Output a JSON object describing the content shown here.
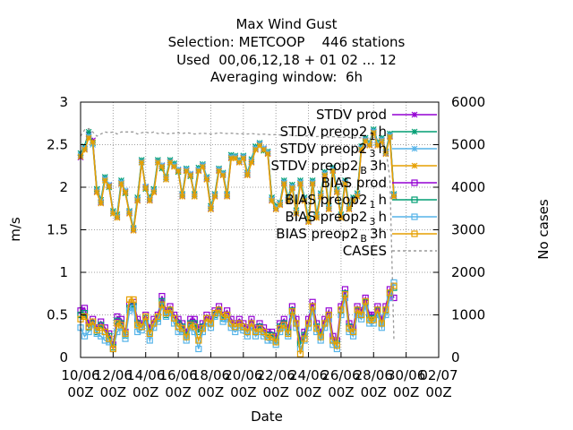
{
  "chart_data": {
    "type": "line",
    "title_lines": [
      "Max Wind Gust",
      "Selection: METCOOP    446 stations",
      "Used  00,06,12,18 + 01 02 ... 12",
      "Averaging window:  6h"
    ],
    "xlabel": "Date",
    "ylabel": "m/s",
    "y2label": "No cases",
    "ylim": [
      0,
      3
    ],
    "y2lim": [
      0,
      6000
    ],
    "yticks": [
      "0",
      "0.5",
      "1",
      "1.5",
      "2",
      "2.5",
      "3"
    ],
    "y2ticks": [
      "0",
      "1000",
      "2000",
      "3000",
      "4000",
      "5000",
      "6000"
    ],
    "xticks": [
      {
        "day": "10/06",
        "hour": "00Z"
      },
      {
        "day": "12/06",
        "hour": "00Z"
      },
      {
        "day": "14/06",
        "hour": "00Z"
      },
      {
        "day": "16/06",
        "hour": "00Z"
      },
      {
        "day": "18/06",
        "hour": "00Z"
      },
      {
        "day": "20/06",
        "hour": "00Z"
      },
      {
        "day": "22/06",
        "hour": "00Z"
      },
      {
        "day": "24/06",
        "hour": "00Z"
      },
      {
        "day": "26/06",
        "hour": "00Z"
      },
      {
        "day": "28/06",
        "hour": "00Z"
      },
      {
        "day": "30/06",
        "hour": "00Z"
      },
      {
        "day": "02/07",
        "hour": "00Z"
      }
    ],
    "xlim_days": [
      0,
      22
    ],
    "time_step_days": 0.25,
    "grid": true,
    "legend_position": "top-right",
    "series": [
      {
        "name": "STDV prod",
        "sub": "",
        "tail": "",
        "color": "#9400d3",
        "marker": "star",
        "dashed": false,
        "axis": "y",
        "values": [
          2.35,
          2.45,
          2.62,
          2.55,
          1.95,
          1.82,
          2.1,
          2.02,
          1.7,
          1.65,
          2.05,
          1.95,
          1.7,
          1.5,
          1.85,
          2.3,
          2.0,
          1.85,
          1.95,
          2.3,
          2.25,
          2.1,
          2.3,
          2.25,
          2.2,
          1.9,
          2.2,
          2.15,
          1.9,
          2.2,
          2.25,
          2.1,
          1.75,
          1.9,
          2.2,
          2.15,
          1.9,
          2.35,
          2.35,
          2.3,
          2.35,
          2.15,
          2.3,
          2.45,
          2.5,
          2.45,
          2.4,
          1.85,
          1.75,
          1.8,
          2.05,
          1.85,
          2.0,
          1.7,
          2.05,
          1.85,
          1.6,
          2.05,
          1.65,
          1.9,
          2.15,
          1.75,
          2.2,
          1.95,
          1.65,
          2.05,
          1.75,
          1.85,
          1.9,
          2.45,
          2.55,
          2.5,
          2.65,
          2.5,
          2.55,
          2.4,
          2.6,
          1.9
        ]
      },
      {
        "name": "STDV preop2",
        "sub": "1",
        "tail": "h",
        "color": "#009e73",
        "marker": "star",
        "dashed": false,
        "axis": "y",
        "values": [
          2.4,
          2.48,
          2.65,
          2.52,
          1.98,
          1.85,
          2.12,
          2.0,
          1.72,
          1.68,
          2.08,
          1.93,
          1.72,
          1.52,
          1.88,
          2.32,
          1.98,
          1.88,
          1.98,
          2.32,
          2.22,
          2.12,
          2.32,
          2.28,
          2.18,
          1.92,
          2.22,
          2.13,
          1.92,
          2.23,
          2.27,
          2.12,
          1.78,
          1.92,
          2.22,
          2.17,
          1.92,
          2.38,
          2.37,
          2.32,
          2.37,
          2.17,
          2.33,
          2.48,
          2.52,
          2.43,
          2.42,
          1.88,
          1.78,
          1.82,
          2.08,
          1.88,
          2.03,
          1.73,
          2.08,
          1.88,
          1.63,
          2.08,
          1.68,
          1.93,
          2.18,
          1.78,
          2.23,
          1.98,
          1.68,
          2.08,
          1.78,
          1.88,
          1.93,
          2.48,
          2.58,
          2.52,
          2.68,
          2.53,
          2.58,
          2.42,
          2.63,
          1.92
        ]
      },
      {
        "name": "STDV preop2",
        "sub": "3",
        "tail": "h",
        "color": "#56b4e9",
        "marker": "star",
        "dashed": false,
        "axis": "y",
        "values": [
          2.38,
          2.46,
          2.6,
          2.5,
          1.96,
          1.83,
          2.1,
          2.03,
          1.7,
          1.66,
          2.06,
          1.96,
          1.71,
          1.51,
          1.86,
          2.3,
          2.01,
          1.86,
          1.96,
          2.3,
          2.26,
          2.1,
          2.3,
          2.26,
          2.21,
          1.91,
          2.21,
          2.16,
          1.9,
          2.21,
          2.26,
          2.11,
          1.76,
          1.91,
          2.21,
          2.16,
          1.91,
          2.36,
          2.36,
          2.31,
          2.36,
          2.16,
          2.31,
          2.46,
          2.51,
          2.46,
          2.41,
          1.86,
          1.76,
          1.81,
          2.06,
          1.86,
          2.01,
          1.71,
          2.06,
          1.86,
          1.61,
          2.06,
          1.66,
          1.91,
          2.16,
          1.76,
          2.21,
          1.96,
          1.66,
          2.06,
          1.76,
          1.86,
          1.91,
          2.46,
          2.56,
          2.51,
          2.66,
          2.51,
          2.56,
          2.41,
          2.61,
          1.91
        ]
      },
      {
        "name": "STDV preop2",
        "sub": "B",
        "tail": "3h",
        "color": "#e69f00",
        "marker": "star",
        "dashed": false,
        "axis": "y",
        "values": [
          2.36,
          2.44,
          2.58,
          2.53,
          1.94,
          1.81,
          2.08,
          2.01,
          1.69,
          1.64,
          2.04,
          1.94,
          1.69,
          1.49,
          1.84,
          2.29,
          1.99,
          1.84,
          1.94,
          2.29,
          2.24,
          2.09,
          2.29,
          2.24,
          2.19,
          1.89,
          2.19,
          2.14,
          1.89,
          2.19,
          2.24,
          2.09,
          1.74,
          1.89,
          2.19,
          2.14,
          1.89,
          2.34,
          2.34,
          2.29,
          2.34,
          2.14,
          2.29,
          2.44,
          2.49,
          2.44,
          2.39,
          1.84,
          1.74,
          1.79,
          2.04,
          1.84,
          1.99,
          1.69,
          2.04,
          1.84,
          1.59,
          2.04,
          1.64,
          1.89,
          2.14,
          1.74,
          2.19,
          1.94,
          1.64,
          2.04,
          1.74,
          1.84,
          1.89,
          2.44,
          2.54,
          2.49,
          2.64,
          2.49,
          2.54,
          2.39,
          2.59,
          1.89
        ]
      },
      {
        "name": "BIAS prod",
        "sub": "",
        "tail": "",
        "color": "#9400d3",
        "marker": "square",
        "dashed": false,
        "axis": "y",
        "values": [
          0.55,
          0.58,
          0.4,
          0.45,
          0.35,
          0.42,
          0.35,
          0.28,
          0.15,
          0.48,
          0.45,
          0.3,
          0.62,
          0.65,
          0.45,
          0.4,
          0.5,
          0.35,
          0.45,
          0.5,
          0.72,
          0.55,
          0.6,
          0.5,
          0.45,
          0.4,
          0.3,
          0.45,
          0.45,
          0.35,
          0.4,
          0.5,
          0.45,
          0.55,
          0.6,
          0.5,
          0.55,
          0.45,
          0.4,
          0.45,
          0.4,
          0.35,
          0.45,
          0.35,
          0.4,
          0.35,
          0.3,
          0.3,
          0.25,
          0.4,
          0.45,
          0.35,
          0.6,
          0.45,
          0.2,
          0.3,
          0.45,
          0.65,
          0.4,
          0.3,
          0.45,
          0.55,
          0.25,
          0.2,
          0.6,
          0.8,
          0.4,
          0.35,
          0.6,
          0.55,
          0.7,
          0.5,
          0.5,
          0.6,
          0.45,
          0.6,
          0.8,
          0.7
        ]
      },
      {
        "name": "BIAS preop2",
        "sub": "1",
        "tail": "h",
        "color": "#009e73",
        "marker": "square",
        "dashed": false,
        "axis": "y",
        "values": [
          0.5,
          0.52,
          0.35,
          0.4,
          0.3,
          0.38,
          0.3,
          0.25,
          0.12,
          0.43,
          0.4,
          0.26,
          0.58,
          0.6,
          0.4,
          0.36,
          0.46,
          0.3,
          0.4,
          0.46,
          0.66,
          0.5,
          0.55,
          0.46,
          0.4,
          0.36,
          0.26,
          0.4,
          0.4,
          0.3,
          0.36,
          0.46,
          0.4,
          0.5,
          0.55,
          0.46,
          0.5,
          0.4,
          0.36,
          0.4,
          0.36,
          0.3,
          0.4,
          0.3,
          0.36,
          0.3,
          0.26,
          0.26,
          0.2,
          0.36,
          0.4,
          0.3,
          0.55,
          0.4,
          0.16,
          0.26,
          0.4,
          0.6,
          0.36,
          0.26,
          0.4,
          0.5,
          0.2,
          0.16,
          0.55,
          0.75,
          0.36,
          0.3,
          0.55,
          0.5,
          0.65,
          0.46,
          0.46,
          0.55,
          0.4,
          0.55,
          0.75,
          0.82
        ]
      },
      {
        "name": "BIAS preop2",
        "sub": "3",
        "tail": "h",
        "color": "#56b4e9",
        "marker": "square",
        "dashed": false,
        "axis": "y",
        "values": [
          0.35,
          0.25,
          0.3,
          0.38,
          0.28,
          0.25,
          0.2,
          0.18,
          0.1,
          0.3,
          0.35,
          0.22,
          0.55,
          0.58,
          0.3,
          0.32,
          0.42,
          0.2,
          0.35,
          0.42,
          0.6,
          0.48,
          0.52,
          0.4,
          0.3,
          0.3,
          0.2,
          0.35,
          0.3,
          0.1,
          0.3,
          0.4,
          0.35,
          0.48,
          0.52,
          0.42,
          0.45,
          0.35,
          0.3,
          0.35,
          0.32,
          0.25,
          0.35,
          0.25,
          0.3,
          0.25,
          0.2,
          0.2,
          0.15,
          0.3,
          0.35,
          0.25,
          0.5,
          0.35,
          0.1,
          0.2,
          0.35,
          0.55,
          0.3,
          0.2,
          0.35,
          0.45,
          0.15,
          0.1,
          0.5,
          0.7,
          0.3,
          0.25,
          0.5,
          0.45,
          0.6,
          0.4,
          0.4,
          0.5,
          0.35,
          0.5,
          0.7,
          0.88
        ]
      },
      {
        "name": "BIAS preop2",
        "sub": "B",
        "tail": "3h",
        "color": "#e69f00",
        "marker": "square",
        "dashed": false,
        "axis": "y",
        "values": [
          0.45,
          0.48,
          0.36,
          0.42,
          0.32,
          0.35,
          0.3,
          0.22,
          0.1,
          0.4,
          0.38,
          0.28,
          0.68,
          0.68,
          0.38,
          0.36,
          0.48,
          0.28,
          0.4,
          0.48,
          0.62,
          0.52,
          0.56,
          0.46,
          0.36,
          0.34,
          0.24,
          0.38,
          0.36,
          0.2,
          0.34,
          0.46,
          0.4,
          0.52,
          0.56,
          0.48,
          0.5,
          0.4,
          0.36,
          0.4,
          0.36,
          0.3,
          0.4,
          0.3,
          0.34,
          0.3,
          0.24,
          0.24,
          0.18,
          0.34,
          0.38,
          0.28,
          0.54,
          0.4,
          0.04,
          0.22,
          0.4,
          0.6,
          0.34,
          0.24,
          0.4,
          0.5,
          0.2,
          0.14,
          0.56,
          0.74,
          0.34,
          0.3,
          0.56,
          0.5,
          0.66,
          0.44,
          0.44,
          0.56,
          0.4,
          0.56,
          0.76,
          0.84
        ]
      },
      {
        "name": "CASES",
        "sub": "",
        "tail": "",
        "color": "#999999",
        "marker": "none",
        "dashed": true,
        "axis": "y2",
        "values": [
          5200,
          5350,
          5380,
          5300,
          5200,
          5250,
          5300,
          5280,
          5300,
          5250,
          5300,
          5300,
          5300,
          5300,
          5250,
          5280,
          5300,
          5270,
          5300,
          5260,
          5280,
          5250,
          5260,
          5270,
          5280,
          5260,
          5280,
          5270,
          5250,
          5260,
          5270,
          5260,
          5250,
          5260,
          5280,
          5270,
          5260,
          5270,
          5260,
          5250,
          5260,
          5250,
          5260,
          5250,
          5240,
          5250,
          5240,
          5230,
          5240,
          5230,
          5220,
          5230,
          5220,
          5210,
          5220,
          5200,
          5210,
          5200,
          5190,
          5200,
          5190,
          5180,
          5190,
          5180,
          5170,
          5180,
          5170,
          5160,
          5170,
          5160,
          5150,
          5140,
          5150,
          5130,
          5100,
          4900,
          4200,
          400
        ]
      }
    ]
  }
}
